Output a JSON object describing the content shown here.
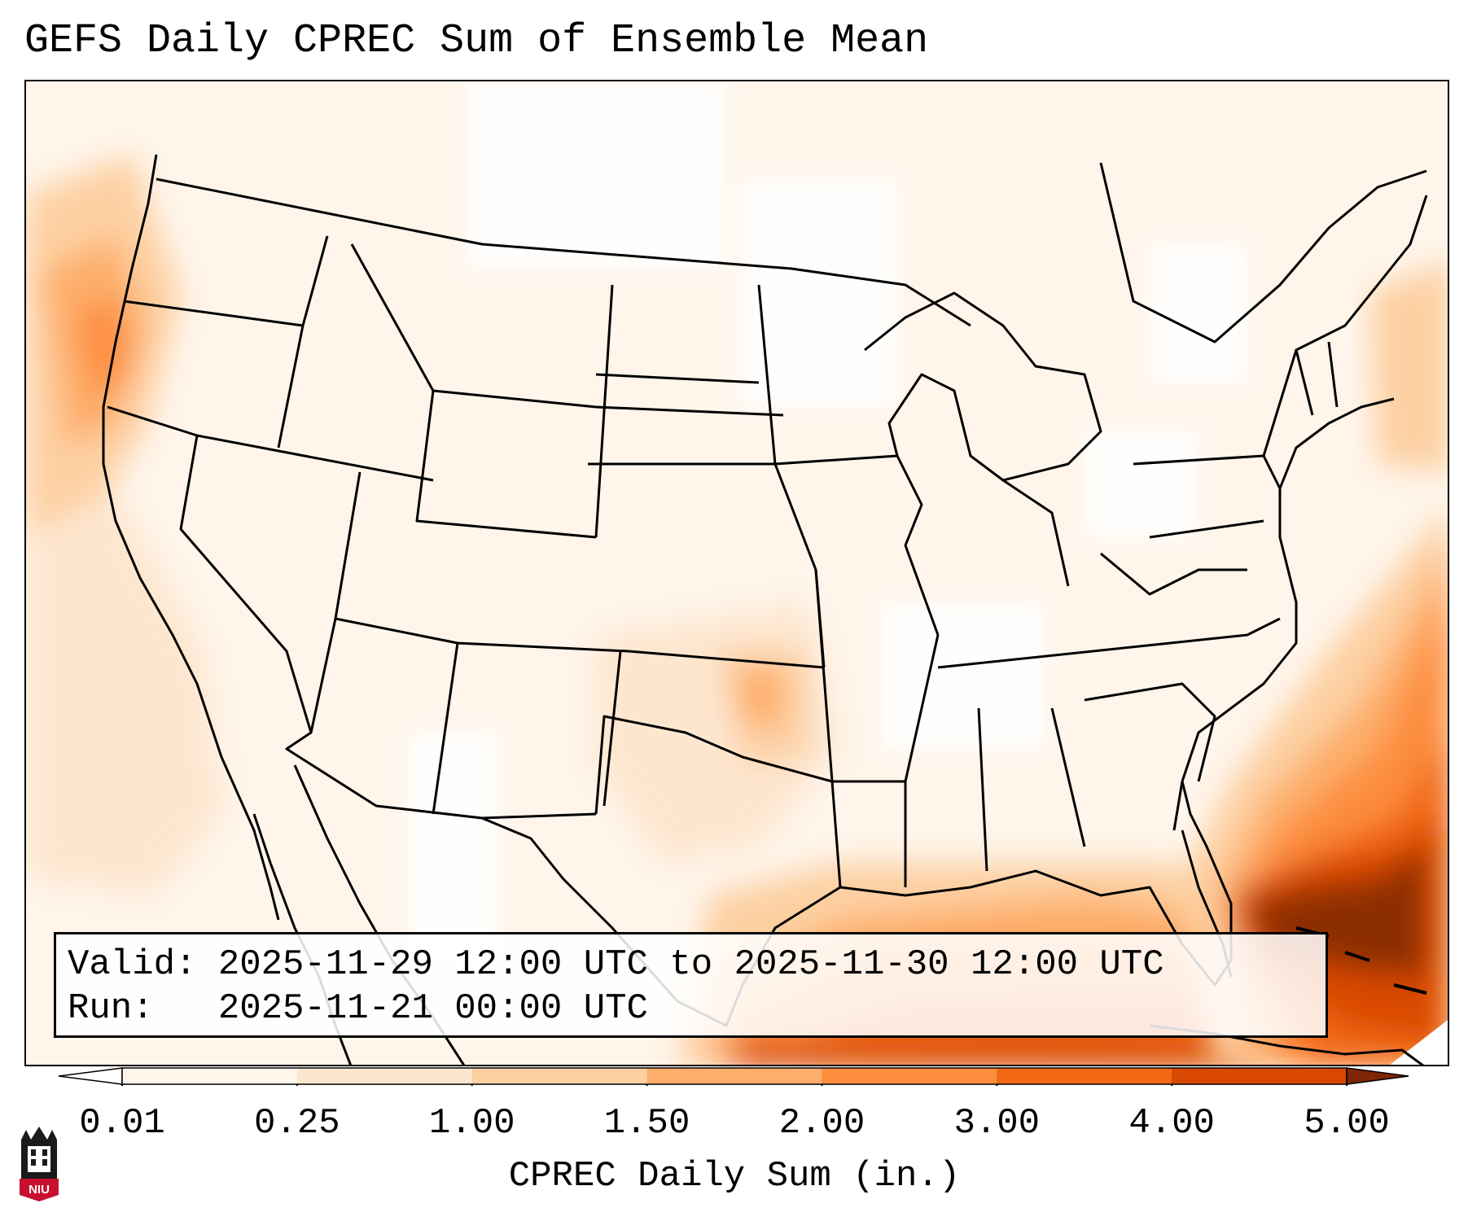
{
  "title": "GEFS Daily CPREC Sum of Ensemble Mean",
  "info": {
    "valid_line": "Valid: 2025-11-29 12:00 UTC to 2025-11-30 12:00 UTC",
    "run_line": "Run:   2025-11-21 00:00 UTC"
  },
  "colorbar": {
    "label": "CPREC Daily Sum (in.)",
    "ticks": [
      "0.01",
      "0.25",
      "1.00",
      "1.50",
      "2.00",
      "3.00",
      "4.00",
      "5.00"
    ],
    "colors": [
      "#fff5eb",
      "#fde6cf",
      "#fdd0a2",
      "#fdae6b",
      "#fd8d3c",
      "#f16913",
      "#d94801",
      "#8c2d04"
    ],
    "under_color": "#ffffff",
    "over_color": "#7f2704"
  },
  "logo": {
    "text": "NIU",
    "name": "niu-logo-icon"
  }
}
